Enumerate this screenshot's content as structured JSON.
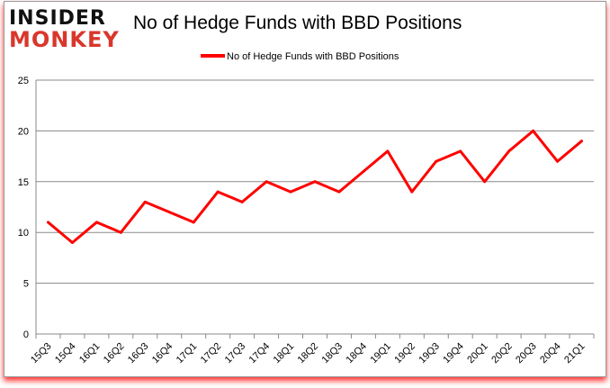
{
  "logo": {
    "line1": "INSIDER",
    "line2": "MONKEY"
  },
  "chart_data": {
    "type": "line",
    "title": "No of Hedge Funds with BBD Positions",
    "categories": [
      "15Q3",
      "15Q4",
      "16Q1",
      "16Q2",
      "16Q3",
      "16Q4",
      "17Q1",
      "17Q2",
      "17Q3",
      "17Q4",
      "18Q1",
      "18Q2",
      "18Q3",
      "18Q4",
      "19Q1",
      "19Q2",
      "19Q3",
      "19Q4",
      "20Q1",
      "20Q2",
      "20Q3",
      "20Q4",
      "21Q1"
    ],
    "series": [
      {
        "name": "No of Hedge Funds with BBD Positions",
        "color": "#ff0000",
        "values": [
          11,
          9,
          11,
          10,
          13,
          12,
          11,
          14,
          13,
          15,
          14,
          15,
          14,
          16,
          18,
          14,
          17,
          18,
          15,
          18,
          20,
          17,
          19
        ]
      }
    ],
    "ylim": [
      0,
      25
    ],
    "yticks": [
      0,
      5,
      10,
      15,
      20,
      25
    ],
    "grid": true,
    "legend": "top-center"
  }
}
